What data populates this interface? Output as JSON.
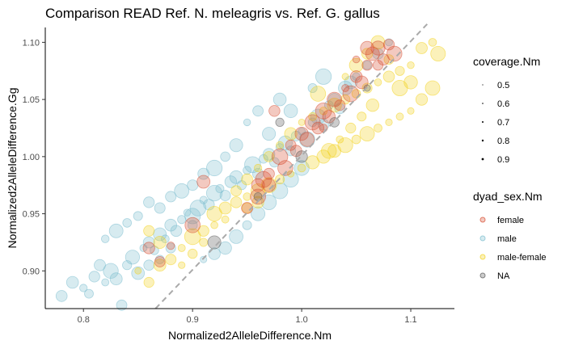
{
  "chart_data": {
    "type": "scatter",
    "title": "Comparison READ Ref. N. meleagris vs. Ref. G. gallus",
    "xlabel": "Normalized2AlleleDifference.Nm",
    "ylabel": "Normalized2AlleleDifference.Gg",
    "xlim": [
      0.765,
      1.14
    ],
    "ylim": [
      0.867,
      1.113
    ],
    "x_ticks": [
      "0.8",
      "0.9",
      "1.0",
      "1.1"
    ],
    "y_ticks": [
      "0.90",
      "0.95",
      "1.00",
      "1.05",
      "1.10"
    ],
    "reference_line": {
      "style": "dashed",
      "color": "#aaaaaa",
      "x": [
        0.866,
        1.115
      ],
      "y": [
        0.867,
        1.116
      ]
    },
    "size_legend": {
      "title": "coverage.Nm",
      "values": [
        "0.5",
        "0.6",
        "0.7",
        "0.8",
        "0.9"
      ]
    },
    "color_legend": {
      "title": "dyad_sex.Nm",
      "entries": [
        "female",
        "male",
        "male-female",
        "NA"
      ]
    },
    "series": [
      {
        "name": "male",
        "color": "#79BCCD",
        "points": [
          [
            0.78,
            0.878
          ],
          [
            0.79,
            0.89
          ],
          [
            0.8,
            0.885
          ],
          [
            0.805,
            0.88
          ],
          [
            0.81,
            0.895
          ],
          [
            0.815,
            0.905
          ],
          [
            0.82,
            0.89
          ],
          [
            0.825,
            0.9
          ],
          [
            0.83,
            0.893
          ],
          [
            0.835,
            0.87
          ],
          [
            0.84,
            0.905
          ],
          [
            0.845,
            0.912
          ],
          [
            0.85,
            0.898
          ],
          [
            0.855,
            0.92
          ],
          [
            0.86,
            0.925
          ],
          [
            0.865,
            0.918
          ],
          [
            0.87,
            0.932
          ],
          [
            0.875,
            0.928
          ],
          [
            0.88,
            0.94
          ],
          [
            0.885,
            0.935
          ],
          [
            0.89,
            0.945
          ],
          [
            0.895,
            0.951
          ],
          [
            0.9,
            0.948
          ],
          [
            0.905,
            0.955
          ],
          [
            0.91,
            0.962
          ],
          [
            0.915,
            0.958
          ],
          [
            0.92,
            0.968
          ],
          [
            0.925,
            0.972
          ],
          [
            0.93,
            0.966
          ],
          [
            0.935,
            0.978
          ],
          [
            0.94,
            0.982
          ],
          [
            0.945,
            0.975
          ],
          [
            0.95,
            0.988
          ],
          [
            0.955,
            0.993
          ],
          [
            0.96,
            0.985
          ],
          [
            0.965,
            0.998
          ],
          [
            0.97,
            1.002
          ],
          [
            0.975,
            0.995
          ],
          [
            0.98,
            1.008
          ],
          [
            0.985,
            1.012
          ],
          [
            0.99,
            1.005
          ],
          [
            0.995,
            1.018
          ],
          [
            1.0,
            1.022
          ],
          [
            1.005,
            1.015
          ],
          [
            1.01,
            1.03
          ],
          [
            1.015,
            1.035
          ],
          [
            1.02,
            1.028
          ],
          [
            1.025,
            1.045
          ],
          [
            1.03,
            1.05
          ],
          [
            1.035,
            1.042
          ],
          [
            1.04,
            1.06
          ],
          [
            1.045,
            1.065
          ],
          [
            1.05,
            1.07
          ],
          [
            1.06,
            1.08
          ],
          [
            1.07,
            1.09
          ],
          [
            1.08,
            1.1
          ],
          [
            0.95,
            1.03
          ],
          [
            0.96,
            1.04
          ],
          [
            0.97,
            1.02
          ],
          [
            0.98,
            1.05
          ],
          [
            0.92,
            0.99
          ],
          [
            0.93,
            1.0
          ],
          [
            0.9,
            0.975
          ],
          [
            0.91,
            0.985
          ],
          [
            0.88,
            0.965
          ],
          [
            0.89,
            0.97
          ],
          [
            0.86,
            0.96
          ],
          [
            0.87,
            0.955
          ],
          [
            0.85,
            0.948
          ],
          [
            0.84,
            0.942
          ],
          [
            0.83,
            0.935
          ],
          [
            0.82,
            0.928
          ],
          [
            0.95,
            0.94
          ],
          [
            0.96,
            0.95
          ],
          [
            0.97,
            0.96
          ],
          [
            0.98,
            0.97
          ],
          [
            0.99,
            0.98
          ],
          [
            1.0,
            0.99
          ],
          [
            0.94,
            0.93
          ],
          [
            0.93,
            0.92
          ],
          [
            0.92,
            0.915
          ],
          [
            0.91,
            0.91
          ],
          [
            0.9,
            0.94
          ],
          [
            0.88,
            0.92
          ],
          [
            0.87,
            0.91
          ],
          [
            0.86,
            0.905
          ],
          [
            0.94,
            1.01
          ],
          [
            0.99,
            1.04
          ],
          [
            1.01,
            1.06
          ],
          [
            1.02,
            1.07
          ]
        ]
      },
      {
        "name": "male-female",
        "color": "#F2D21A",
        "points": [
          [
            0.85,
            0.9
          ],
          [
            0.86,
            0.89
          ],
          [
            0.87,
            0.905
          ],
          [
            0.88,
            0.91
          ],
          [
            0.89,
            0.92
          ],
          [
            0.9,
            0.93
          ],
          [
            0.91,
            0.935
          ],
          [
            0.92,
            0.95
          ],
          [
            0.93,
            0.955
          ],
          [
            0.94,
            0.96
          ],
          [
            0.95,
            0.965
          ],
          [
            0.96,
            0.97
          ],
          [
            0.97,
            0.975
          ],
          [
            0.98,
            0.98
          ],
          [
            0.99,
            0.985
          ],
          [
            1.0,
            0.99
          ],
          [
            1.01,
            0.995
          ],
          [
            1.02,
            1.0
          ],
          [
            1.03,
            1.005
          ],
          [
            1.04,
            1.01
          ],
          [
            1.05,
            1.015
          ],
          [
            1.06,
            1.02
          ],
          [
            1.07,
            1.025
          ],
          [
            1.08,
            1.03
          ],
          [
            1.09,
            1.035
          ],
          [
            1.1,
            1.04
          ],
          [
            1.11,
            1.05
          ],
          [
            1.12,
            1.06
          ],
          [
            1.125,
            1.09
          ],
          [
            1.12,
            1.1
          ],
          [
            1.11,
            1.095
          ],
          [
            1.1,
            1.08
          ],
          [
            1.09,
            1.075
          ],
          [
            1.08,
            1.07
          ],
          [
            1.07,
            1.065
          ],
          [
            1.06,
            1.06
          ],
          [
            1.05,
            1.055
          ],
          [
            1.04,
            1.05
          ],
          [
            1.03,
            1.045
          ],
          [
            1.02,
            1.04
          ],
          [
            1.01,
            1.035
          ],
          [
            1.0,
            1.03
          ],
          [
            0.99,
            1.02
          ],
          [
            0.98,
            1.01
          ],
          [
            0.97,
            1.0
          ],
          [
            0.96,
            0.99
          ],
          [
            0.95,
            0.98
          ],
          [
            0.94,
            0.97
          ],
          [
            1.04,
            1.07
          ],
          [
            1.05,
            1.08
          ],
          [
            1.06,
            1.09
          ],
          [
            1.07,
            1.1
          ],
          [
            1.08,
            1.085
          ],
          [
            1.09,
            1.06
          ],
          [
            1.1,
            1.065
          ],
          [
            1.065,
            1.045
          ],
          [
            1.055,
            1.035
          ],
          [
            1.045,
            1.025
          ],
          [
            1.035,
            1.015
          ],
          [
            1.025,
            1.005
          ],
          [
            0.93,
            0.945
          ],
          [
            0.92,
            0.94
          ],
          [
            0.91,
            0.925
          ],
          [
            0.9,
            0.915
          ],
          [
            0.89,
            0.905
          ],
          [
            0.87,
            0.925
          ],
          [
            0.86,
            0.935
          ],
          [
            0.95,
            0.955
          ],
          [
            0.96,
            0.96
          ],
          [
            1.015,
            1.055
          ]
        ]
      },
      {
        "name": "female",
        "color": "#D64B2F",
        "points": [
          [
            0.86,
            0.92
          ],
          [
            0.87,
            0.908
          ],
          [
            0.88,
            0.922
          ],
          [
            0.9,
            0.94
          ],
          [
            0.91,
            0.978
          ],
          [
            0.95,
            0.955
          ],
          [
            0.96,
            0.965
          ],
          [
            0.97,
            0.975
          ],
          [
            0.975,
            1.04
          ],
          [
            0.98,
            1.0
          ],
          [
            0.985,
            0.99
          ],
          [
            0.99,
            1.01
          ],
          [
            0.995,
            1.005
          ],
          [
            1.0,
            1.02
          ],
          [
            1.005,
            1.015
          ],
          [
            1.01,
            1.03
          ],
          [
            1.015,
            1.025
          ],
          [
            1.02,
            1.04
          ],
          [
            1.025,
            1.035
          ],
          [
            1.03,
            1.05
          ],
          [
            1.035,
            1.045
          ],
          [
            1.04,
            1.06
          ],
          [
            1.045,
            1.055
          ],
          [
            1.05,
            1.07
          ],
          [
            1.055,
            1.065
          ],
          [
            1.06,
            1.08
          ],
          [
            1.065,
            1.09
          ],
          [
            1.07,
            1.095
          ],
          [
            1.075,
            1.085
          ],
          [
            1.08,
            1.098
          ],
          [
            1.085,
            1.09
          ],
          [
            1.06,
            1.095
          ],
          [
            1.05,
            1.085
          ],
          [
            1.07,
            1.08
          ],
          [
            0.97,
            0.985
          ],
          [
            0.965,
            0.98
          ],
          [
            0.96,
            0.975
          ],
          [
            1.02,
            1.025
          ]
        ]
      },
      {
        "name": "NA",
        "color": "#555555",
        "points": [
          [
            0.92,
            0.925
          ],
          [
            0.96,
            0.965
          ],
          [
            0.98,
            1.03
          ],
          [
            1.0,
            1.0
          ],
          [
            1.03,
            1.03
          ],
          [
            1.06,
            1.06
          ]
        ]
      }
    ]
  }
}
